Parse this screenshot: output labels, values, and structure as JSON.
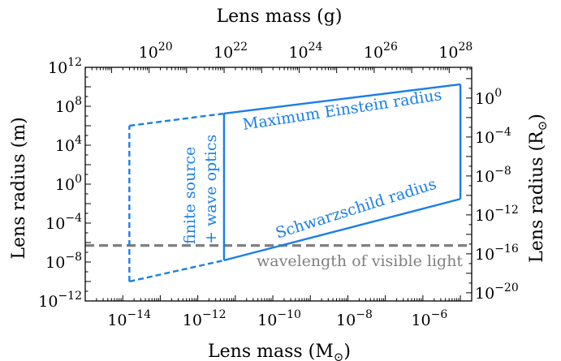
{
  "chart_data": {
    "type": "line",
    "axes": {
      "x_bottom": {
        "label": "Lens mass (M",
        "label_sub": "⊙",
        "label_close": ")",
        "scale": "log",
        "lim": [
          1e-15,
          2e-05
        ],
        "ticks": [
          {
            "base": "10",
            "exp": "−14",
            "value": 1e-14
          },
          {
            "base": "10",
            "exp": "−12",
            "value": 1e-12
          },
          {
            "base": "10",
            "exp": "−10",
            "value": 1e-10
          },
          {
            "base": "10",
            "exp": "−8",
            "value": 1e-08
          },
          {
            "base": "10",
            "exp": "−6",
            "value": 1e-06
          }
        ]
      },
      "x_top": {
        "label": "Lens mass (g)",
        "scale": "log",
        "ticks": [
          {
            "base": "10",
            "exp": "20",
            "value": 1e+20
          },
          {
            "base": "10",
            "exp": "22",
            "value": 1e+22
          },
          {
            "base": "10",
            "exp": "24",
            "value": 1e+24
          },
          {
            "base": "10",
            "exp": "26",
            "value": 1e+26
          },
          {
            "base": "10",
            "exp": "28",
            "value": 1e+28
          }
        ]
      },
      "y_left": {
        "label": "Lens radius (m)",
        "scale": "log",
        "lim": [
          1e-12,
          1000000000000.0
        ],
        "ticks": [
          {
            "base": "10",
            "exp": "12",
            "value": 1000000000000.0
          },
          {
            "base": "10",
            "exp": "8",
            "value": 100000000.0
          },
          {
            "base": "10",
            "exp": "4",
            "value": 10000.0
          },
          {
            "base": "10",
            "exp": "0",
            "value": 1
          },
          {
            "base": "10",
            "exp": "−4",
            "value": 0.0001
          },
          {
            "base": "10",
            "exp": "−8",
            "value": 1e-08
          },
          {
            "base": "10",
            "exp": "−12",
            "value": 1e-12
          }
        ]
      },
      "y_right": {
        "label": "Lens radius (R",
        "label_sub": "⊙",
        "label_close": ")",
        "scale": "log",
        "ticks": [
          {
            "base": "10",
            "exp": "0",
            "value": 1
          },
          {
            "base": "10",
            "exp": "−4",
            "value": 0.0001
          },
          {
            "base": "10",
            "exp": "−8",
            "value": 1e-08
          },
          {
            "base": "10",
            "exp": "−12",
            "value": 1e-12
          },
          {
            "base": "10",
            "exp": "−16",
            "value": 1e-16
          },
          {
            "base": "10",
            "exp": "−20",
            "value": 1e-20
          }
        ]
      }
    },
    "series": [
      {
        "name": "Maximum Einstein radius",
        "style": "solid",
        "x": [
          5e-12,
          1e-05
        ],
        "y": [
          18000000.0,
          18000000000.0
        ]
      },
      {
        "name": "Schwarzschild radius",
        "style": "solid",
        "x": [
          5e-12,
          1e-05
        ],
        "y": [
          1.5e-08,
          0.03
        ]
      },
      {
        "name": "",
        "style": "solid",
        "x": [
          5e-12,
          5e-12
        ],
        "y": [
          1.5e-08,
          18000000.0
        ]
      },
      {
        "name": "",
        "style": "solid",
        "x": [
          1e-05,
          1e-05
        ],
        "y": [
          0.03,
          18000000000.0
        ]
      },
      {
        "name": "",
        "style": "dashed",
        "x": [
          1.5e-14,
          5e-12
        ],
        "y": [
          1000000.0,
          18000000.0
        ]
      },
      {
        "name": "",
        "style": "dashed",
        "x": [
          1.5e-14,
          5e-12
        ],
        "y": [
          1e-10,
          1.5e-08
        ]
      },
      {
        "name": "",
        "style": "dashed",
        "x": [
          1.5e-14,
          1.5e-14
        ],
        "y": [
          1e-10,
          1000000.0
        ]
      }
    ],
    "hline": {
      "name": "wavelength of visible light",
      "y": 5e-07,
      "style": "dashed"
    },
    "annotations": {
      "finite_source_line1": "finite source",
      "finite_source_line2": "+ wave optics"
    },
    "colors": {
      "boundary": "#1a7fe6",
      "visible_light": "#808080"
    }
  }
}
